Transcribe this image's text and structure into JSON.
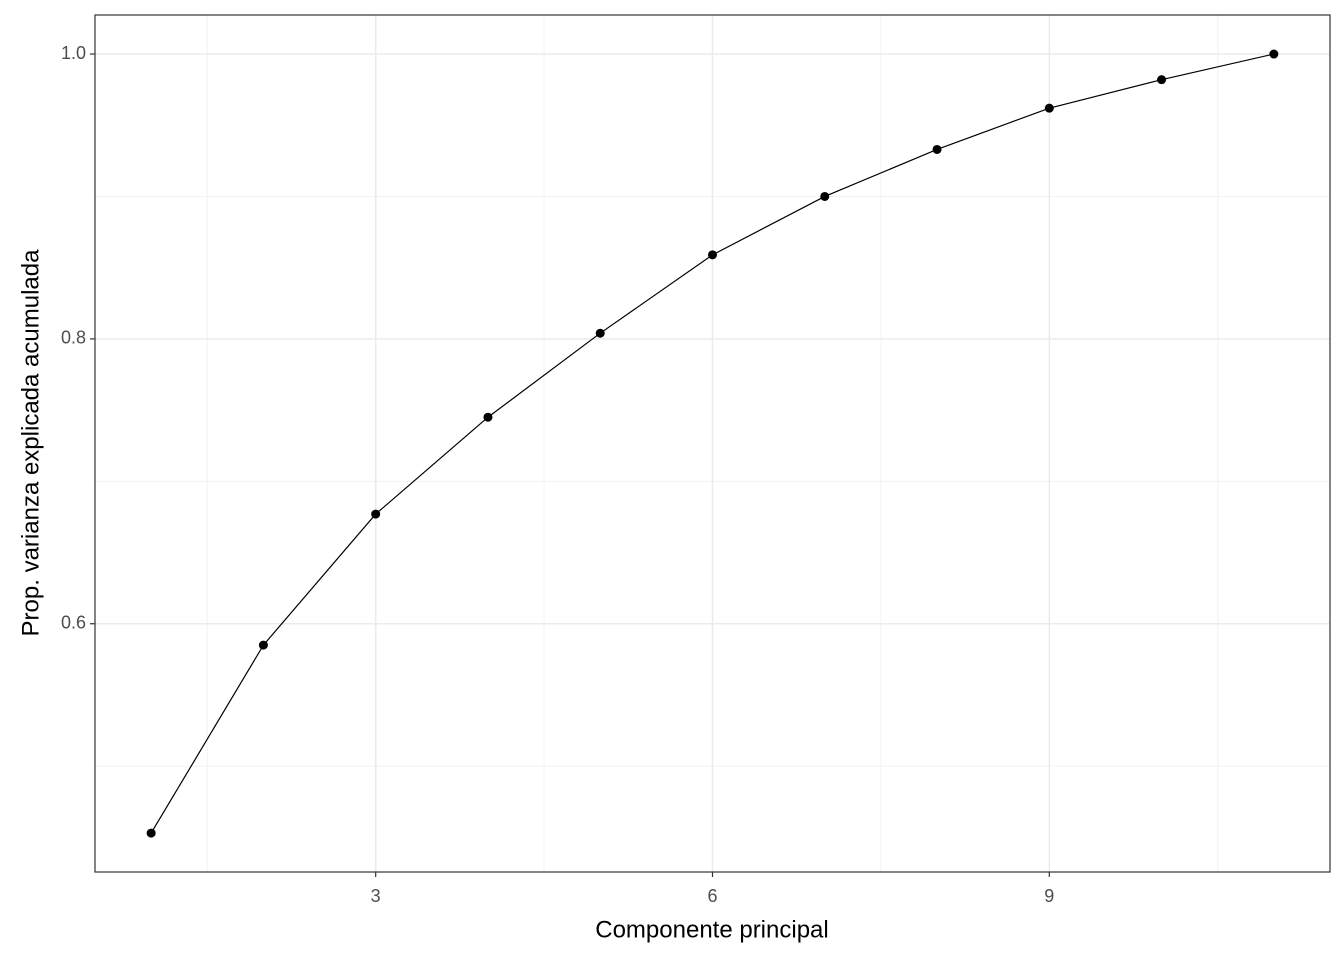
{
  "chart_data": {
    "type": "line",
    "x_label": "Componente principal",
    "y_label": "Prop. varianza explicada acumulada",
    "x": [
      1,
      2,
      3,
      4,
      5,
      6,
      7,
      8,
      9,
      10,
      11
    ],
    "series": [
      {
        "color": "#000000",
        "values": [
          0.453,
          0.585,
          0.677,
          0.745,
          0.804,
          0.859,
          0.9,
          0.933,
          0.962,
          0.982,
          1.0
        ]
      }
    ],
    "xlim": [
      0.5,
      11.5
    ],
    "xticks": [
      3,
      6,
      9
    ],
    "ylim": [
      0.4257,
      1.0274
    ],
    "yticks": [
      0.6,
      0.8,
      {
        "value": 1.0,
        "label": "1.0"
      }
    ],
    "x_minor_gridlines": [
      1.5,
      4.5,
      7.5,
      10.5
    ],
    "y_minor_gridlines": [
      0.5,
      0.7,
      0.9
    ],
    "grid": true,
    "markers": true
  }
}
